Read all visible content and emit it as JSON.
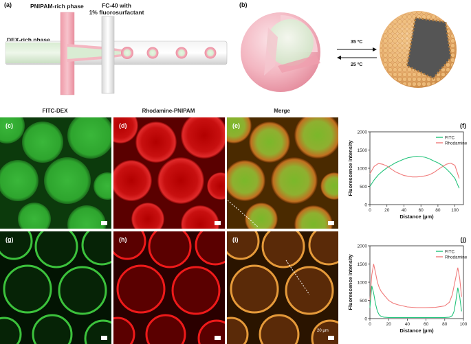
{
  "panel_a": {
    "label": "(a)",
    "pnipam_label": "PNIPAM-rich phase",
    "fc40_label": "FC-40 with\n1% fluorosurfactant",
    "dex_label": "DEX-rich phase"
  },
  "panel_b": {
    "label": "(b)",
    "heat_temp": "35 ºC",
    "cool_temp": "25 ºC"
  },
  "micrographs": {
    "col1_title": "FITC-DEX",
    "col2_title": "Rhodamine-PNIPAM",
    "col3_title": "Merge",
    "labels": [
      "(c)",
      "(d)",
      "(e)",
      "(g)",
      "(h)",
      "(i)"
    ],
    "scale_text": "20 µm"
  },
  "colors": {
    "fitc": "#22c37a",
    "rhodamine": "#f07a7a",
    "droplet_pink": "#f2a3b3",
    "dex_green": "#cfe6c7"
  },
  "chart_data": [
    {
      "panel": "(f)",
      "type": "line",
      "xlabel": "Distance (µm)",
      "ylabel": "Fluorescence intensity",
      "xlim": [
        0,
        110
      ],
      "ylim": [
        0,
        2000
      ],
      "xticks": [
        0,
        20,
        40,
        60,
        80,
        100
      ],
      "yticks": [
        0,
        500,
        1000,
        1500,
        2000
      ],
      "legend": "top-right",
      "series": [
        {
          "name": "FITC",
          "x": [
            0,
            5,
            10,
            15,
            20,
            25,
            30,
            35,
            40,
            45,
            50,
            55,
            60,
            65,
            70,
            75,
            80,
            85,
            90,
            95,
            100,
            105
          ],
          "values": [
            500,
            680,
            820,
            920,
            1010,
            1080,
            1150,
            1200,
            1250,
            1290,
            1310,
            1330,
            1320,
            1300,
            1260,
            1200,
            1150,
            1080,
            980,
            860,
            720,
            450
          ]
        },
        {
          "name": "Rhodamine",
          "x": [
            0,
            5,
            10,
            15,
            20,
            25,
            30,
            35,
            40,
            45,
            50,
            55,
            60,
            65,
            70,
            75,
            80,
            85,
            90,
            95,
            100,
            105
          ],
          "values": [
            850,
            1050,
            1130,
            1110,
            1060,
            980,
            900,
            850,
            800,
            780,
            760,
            760,
            770,
            790,
            820,
            880,
            960,
            1040,
            1110,
            1140,
            1080,
            720
          ]
        }
      ]
    },
    {
      "panel": "(j)",
      "type": "line",
      "xlabel": "Distance (µm)",
      "ylabel": "Fluorescence intensity",
      "xlim": [
        0,
        100
      ],
      "ylim": [
        0,
        2000
      ],
      "xticks": [
        0,
        20,
        40,
        60,
        80,
        100
      ],
      "yticks": [
        0,
        500,
        1000,
        1500,
        2000
      ],
      "legend": "top-right",
      "series": [
        {
          "name": "FITC",
          "x": [
            0,
            2,
            4,
            6,
            8,
            10,
            12,
            15,
            20,
            25,
            30,
            40,
            50,
            60,
            70,
            80,
            85,
            88,
            90,
            92,
            94,
            96,
            98
          ],
          "values": [
            300,
            900,
            700,
            400,
            200,
            100,
            60,
            40,
            30,
            30,
            30,
            30,
            30,
            30,
            30,
            30,
            40,
            80,
            200,
            500,
            850,
            600,
            200
          ]
        },
        {
          "name": "Rhodamine",
          "x": [
            0,
            2,
            4,
            6,
            8,
            10,
            12,
            15,
            20,
            25,
            30,
            40,
            50,
            60,
            70,
            80,
            85,
            88,
            90,
            92,
            94,
            96,
            98
          ],
          "values": [
            500,
            1200,
            1500,
            1250,
            1000,
            850,
            750,
            650,
            500,
            420,
            380,
            320,
            300,
            300,
            310,
            350,
            450,
            650,
            900,
            1150,
            1400,
            1100,
            600
          ]
        }
      ]
    }
  ]
}
